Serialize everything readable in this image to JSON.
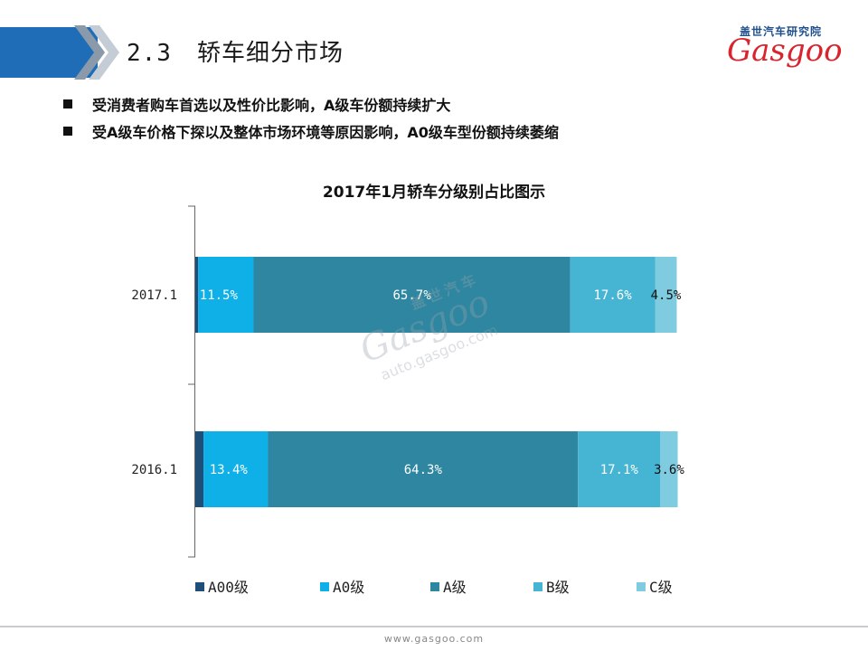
{
  "header": {
    "section_number": "2.3",
    "section_title": "轿车细分市场"
  },
  "logo": {
    "cn_text": "盖世汽车研究院",
    "word": "Gasgoo"
  },
  "bullets": [
    "受消费者购车首选以及性价比影响，A级车份额持续扩大",
    "受A级车价格下探以及整体市场环境等原因影响，A0级车型份额持续萎缩"
  ],
  "watermark": {
    "cn": "盖世汽车",
    "word": "Gasgoo",
    "url": "auto.gasgoo.com"
  },
  "footer": {
    "url": "www.gasgoo.com"
  },
  "chart_data": {
    "type": "bar",
    "orientation": "horizontal",
    "stacked": "percent",
    "title": "2017年1月轿车分级别占比图示",
    "categories": [
      "2017.1",
      "2016.1"
    ],
    "series": [
      {
        "name": "A00级",
        "values": [
          0.6,
          1.7
        ],
        "labels": [
          "",
          ""
        ],
        "color": "#1f4e79",
        "label_color": "#ffffff"
      },
      {
        "name": "A0级",
        "values": [
          11.5,
          13.4
        ],
        "labels": [
          "11.5%",
          "13.4%"
        ],
        "color": "#0fb0e8",
        "label_color": "#ffffff"
      },
      {
        "name": "A级",
        "values": [
          65.7,
          64.3
        ],
        "labels": [
          "65.7%",
          "64.3%"
        ],
        "color": "#2e86a0",
        "label_color": "#ffffff"
      },
      {
        "name": "B级",
        "values": [
          17.6,
          17.1
        ],
        "labels": [
          "17.6%",
          "17.1%"
        ],
        "color": "#45b5d3",
        "label_color": "#ffffff"
      },
      {
        "name": "C级",
        "values": [
          4.5,
          3.6
        ],
        "labels": [
          "4.5%",
          "3.6%"
        ],
        "color": "#7fcbe0",
        "label_color": "#111111"
      }
    ],
    "xlim": [
      0,
      100
    ],
    "grid": false,
    "legend_position": "bottom"
  }
}
